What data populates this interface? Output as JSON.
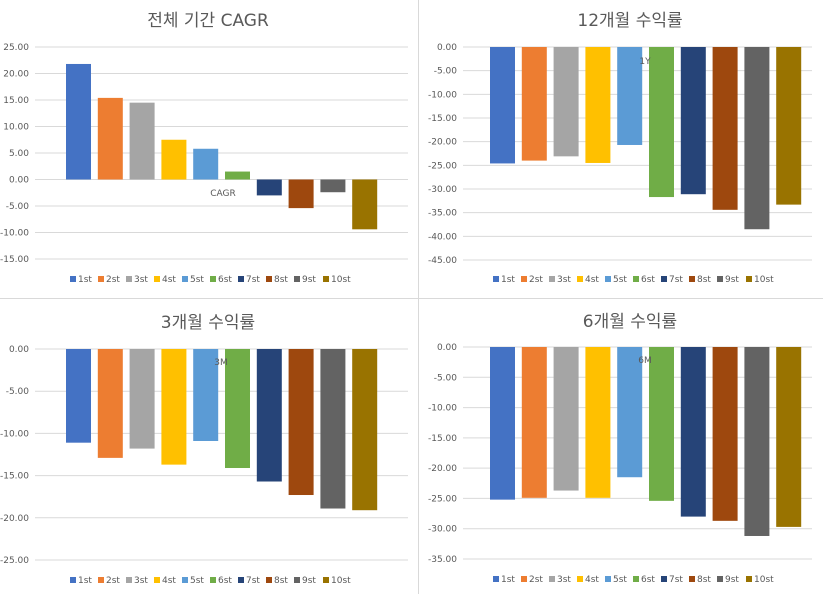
{
  "legend": [
    "1st",
    "2st",
    "3st",
    "4st",
    "5st",
    "6st",
    "7st",
    "8st",
    "9st",
    "10st"
  ],
  "series_colors": [
    "#4472c4",
    "#ed7d31",
    "#a5a5a5",
    "#ffc000",
    "#5b9bd5",
    "#70ad47",
    "#264478",
    "#9e480e",
    "#636363",
    "#997300"
  ],
  "chart_data": [
    {
      "type": "bar",
      "title": "전체 기간 CAGR",
      "annotation": "CAGR",
      "categories": [
        "1st",
        "2st",
        "3st",
        "4st",
        "5st",
        "6st",
        "7st",
        "8st",
        "9st",
        "10st"
      ],
      "values": [
        21.8,
        15.4,
        14.5,
        7.5,
        5.8,
        1.5,
        -3.0,
        -5.4,
        -2.4,
        -9.4
      ],
      "ylim": [
        -15,
        25
      ],
      "yticks": [
        "25.00",
        "20.00",
        "15.00",
        "10.00",
        "5.00",
        "0.00",
        "-5.00",
        "-10.00",
        "-15.00"
      ]
    },
    {
      "type": "bar",
      "title": "12개월 수익률",
      "annotation": "1Y",
      "categories": [
        "1st",
        "2st",
        "3st",
        "4st",
        "5st",
        "6st",
        "7st",
        "8st",
        "9st",
        "10st"
      ],
      "values": [
        -24.6,
        -24.0,
        -23.1,
        -24.5,
        -20.7,
        -31.7,
        -31.1,
        -34.4,
        -38.5,
        -33.3
      ],
      "ylim": [
        -45,
        0
      ],
      "yticks": [
        "0.00",
        "-5.00",
        "-10.00",
        "-15.00",
        "-20.00",
        "-25.00",
        "-30.00",
        "-35.00",
        "-40.00",
        "-45.00"
      ]
    },
    {
      "type": "bar",
      "title": "3개월 수익률",
      "annotation": "3M",
      "categories": [
        "1st",
        "2st",
        "3st",
        "4st",
        "5st",
        "6st",
        "7st",
        "8st",
        "9st",
        "10st"
      ],
      "values": [
        -11.1,
        -12.9,
        -11.8,
        -13.7,
        -10.9,
        -14.1,
        -15.7,
        -17.3,
        -18.9,
        -19.1
      ],
      "ylim": [
        -25,
        0
      ],
      "yticks": [
        "0.00",
        "-5.00",
        "-10.00",
        "-15.00",
        "-20.00",
        "-25.00"
      ]
    },
    {
      "type": "bar",
      "title": "6개월 수익률",
      "annotation": "6M",
      "categories": [
        "1st",
        "2st",
        "3st",
        "4st",
        "5st",
        "6st",
        "7st",
        "8st",
        "9st",
        "10st"
      ],
      "values": [
        -25.2,
        -24.9,
        -23.7,
        -24.9,
        -21.5,
        -25.4,
        -28.0,
        -28.7,
        -31.2,
        -29.7
      ],
      "ylim": [
        -35,
        0
      ],
      "yticks": [
        "0.00",
        "-5.00",
        "-10.00",
        "-15.00",
        "-20.00",
        "-25.00",
        "-30.00",
        "-35.00"
      ]
    }
  ]
}
